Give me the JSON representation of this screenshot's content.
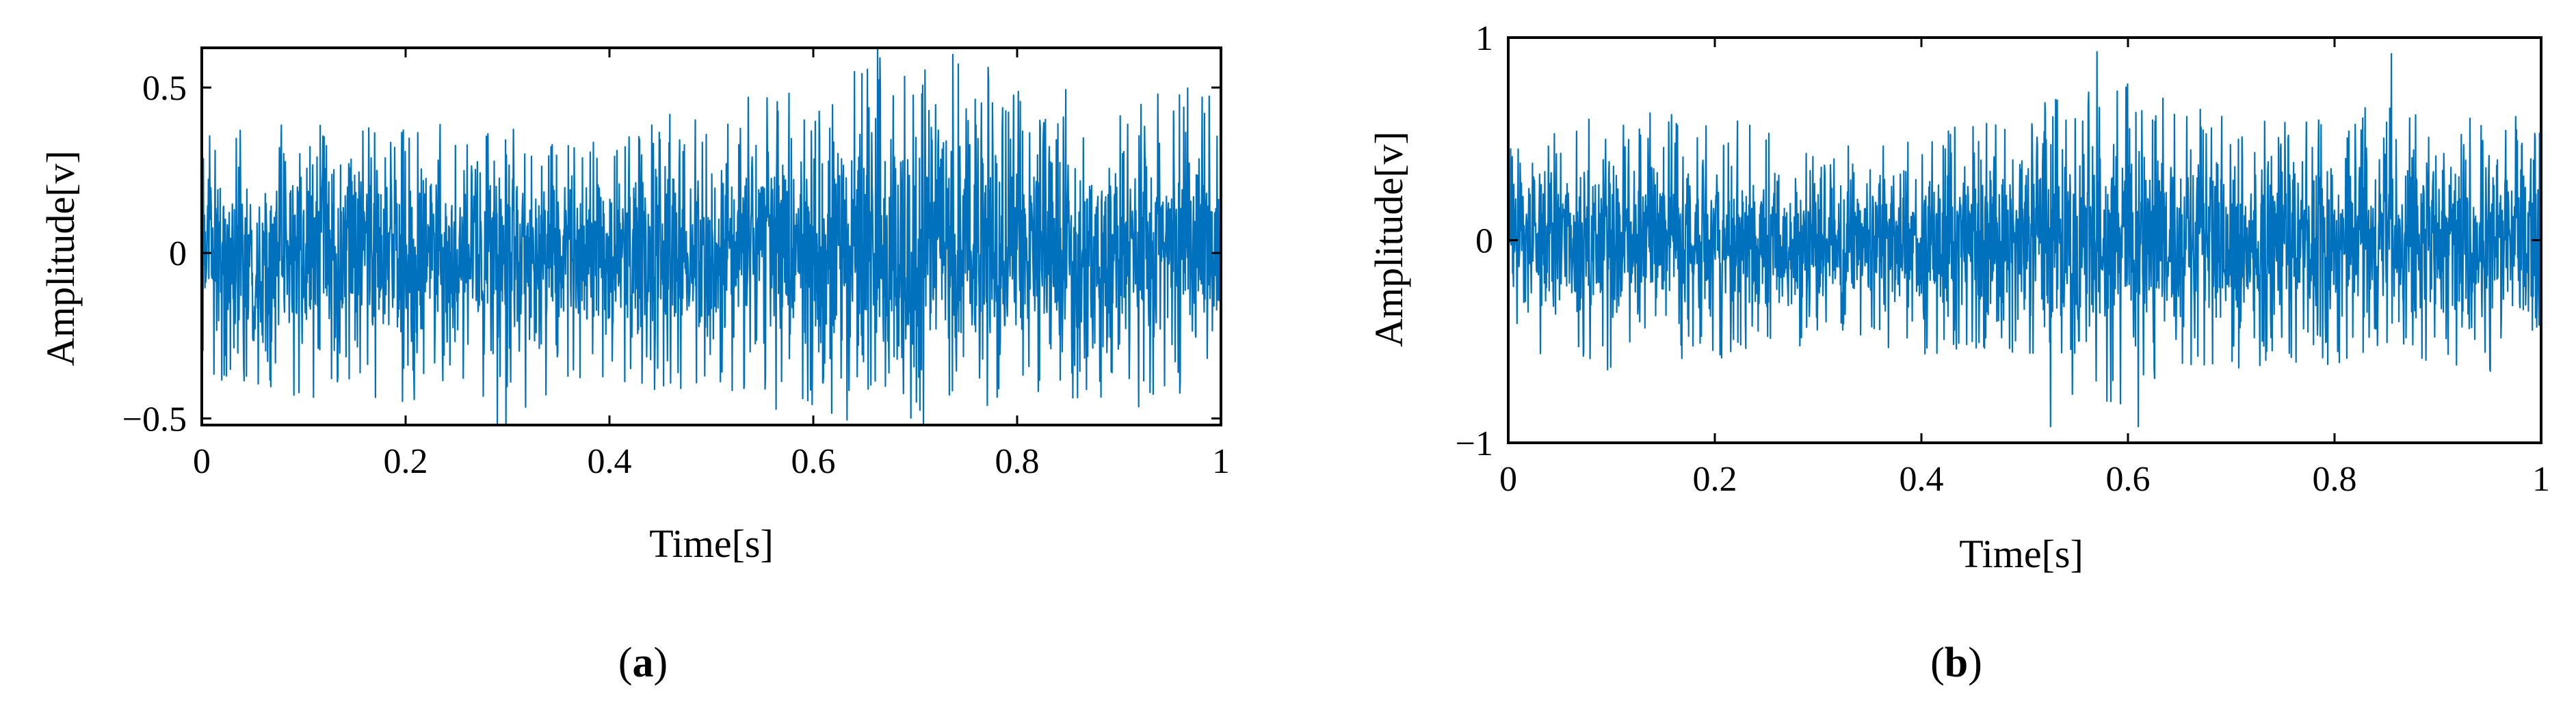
{
  "figure": {
    "panel_colors": {
      "signal": "#0072BD",
      "axes": "#000000",
      "background": "#ffffff"
    }
  },
  "chart_data": [
    {
      "type": "line",
      "panel_label": "a",
      "xlabel": "Time[s]",
      "ylabel": "Amplitude[v]",
      "xlim": [
        0,
        1
      ],
      "ylim": [
        -0.52,
        0.62
      ],
      "xticks": [
        0,
        0.2,
        0.4,
        0.6,
        0.8,
        1
      ],
      "xtick_labels": [
        "0",
        "0.2",
        "0.4",
        "0.6",
        "0.8",
        "1"
      ],
      "yticks": [
        -0.5,
        0,
        0.5
      ],
      "ytick_labels": [
        "−0.5",
        "0",
        "0.5"
      ],
      "grid": false,
      "series": [
        {
          "color": "#0072BD",
          "envelope": {
            "t": [
              0.0,
              0.05,
              0.1,
              0.15,
              0.2,
              0.25,
              0.3,
              0.35,
              0.4,
              0.45,
              0.5,
              0.55,
              0.6,
              0.65,
              0.7,
              0.75,
              0.8,
              0.85,
              0.9,
              0.95,
              1.0
            ],
            "max": [
              0.35,
              0.4,
              0.42,
              0.42,
              0.42,
              0.4,
              0.38,
              0.35,
              0.37,
              0.45,
              0.4,
              0.5,
              0.5,
              0.62,
              0.55,
              0.58,
              0.55,
              0.5,
              0.48,
              0.56,
              0.45
            ],
            "min": [
              -0.38,
              -0.43,
              -0.45,
              -0.45,
              -0.45,
              -0.42,
              -0.52,
              -0.4,
              -0.4,
              -0.42,
              -0.4,
              -0.47,
              -0.48,
              -0.52,
              -0.52,
              -0.47,
              -0.47,
              -0.45,
              -0.48,
              -0.45,
              -0.4
            ]
          },
          "peaks": [
            {
              "t": 0.29,
              "y": -0.52
            },
            {
              "t": 0.663,
              "y": 0.62
            },
            {
              "t": 0.708,
              "y": -0.52
            },
            {
              "t": 0.737,
              "y": 0.6
            }
          ]
        }
      ]
    },
    {
      "type": "line",
      "panel_label": "b",
      "xlabel": "Time[s]",
      "ylabel": "Amplitude[v]",
      "xlim": [
        0,
        1
      ],
      "ylim": [
        -1,
        1
      ],
      "xticks": [
        0,
        0.2,
        0.4,
        0.6,
        0.8,
        1
      ],
      "xtick_labels": [
        "0",
        "0.2",
        "0.4",
        "0.6",
        "0.8",
        "1"
      ],
      "yticks": [
        -1,
        0,
        1
      ],
      "ytick_labels": [
        "−1",
        "0",
        "1"
      ],
      "grid": false,
      "series": [
        {
          "color": "#0072BD",
          "envelope": {
            "t": [
              0.0,
              0.05,
              0.1,
              0.15,
              0.2,
              0.25,
              0.3,
              0.35,
              0.4,
              0.45,
              0.5,
              0.55,
              0.6,
              0.65,
              0.7,
              0.75,
              0.8,
              0.85,
              0.9,
              0.95,
              1.0
            ],
            "max": [
              0.45,
              0.55,
              0.65,
              0.62,
              0.62,
              0.58,
              0.5,
              0.5,
              0.55,
              0.62,
              0.62,
              0.78,
              0.8,
              0.68,
              0.62,
              0.62,
              0.62,
              0.75,
              0.65,
              0.7,
              0.55
            ],
            "min": [
              -0.5,
              -0.62,
              -0.65,
              -0.6,
              -0.6,
              -0.58,
              -0.52,
              -0.55,
              -0.6,
              -0.62,
              -0.65,
              -0.82,
              -0.85,
              -0.7,
              -0.65,
              -0.62,
              -0.62,
              -0.65,
              -0.62,
              -0.65,
              -0.55
            ]
          },
          "peaks": [
            {
              "t": 0.525,
              "y": -0.92
            },
            {
              "t": 0.57,
              "y": 0.93
            },
            {
              "t": 0.61,
              "y": -0.92
            },
            {
              "t": 0.855,
              "y": 0.92
            }
          ]
        }
      ]
    }
  ]
}
